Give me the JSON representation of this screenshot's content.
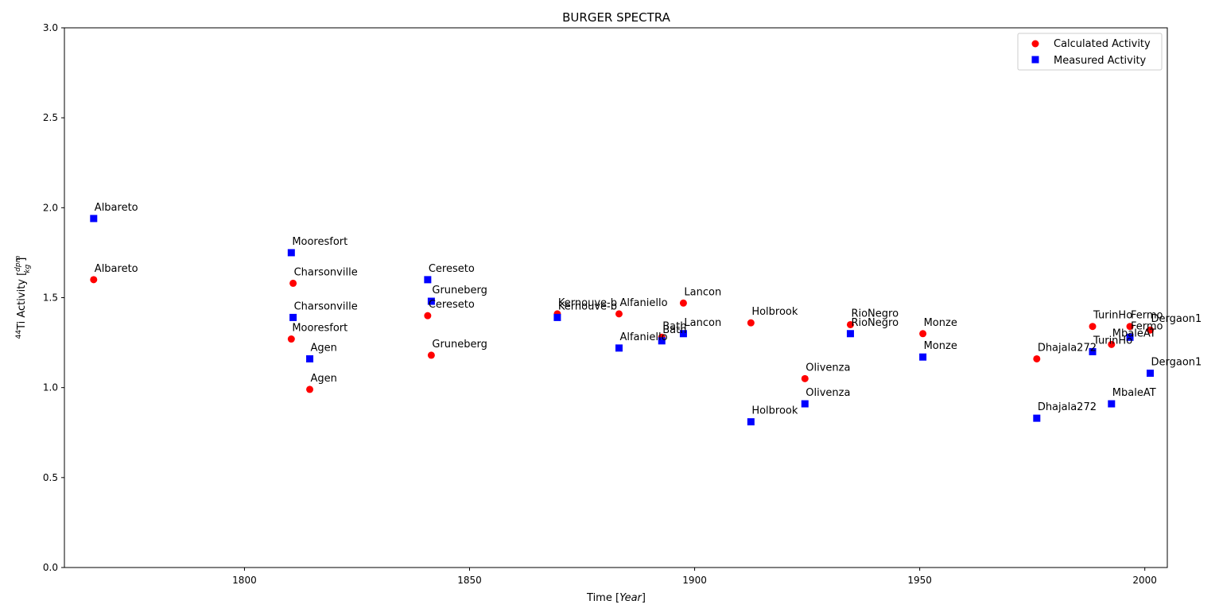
{
  "chart_data": {
    "type": "scatter",
    "title": "BURGER SPECTRA",
    "xlabel_main": "Time [",
    "xlabel_unit": "Year",
    "xlabel_close": "]",
    "ylabel_main": "Ti Activity [",
    "ylabel_sup": "44",
    "ylabel_unit_num": "dpm",
    "ylabel_unit_den": "kg",
    "ylabel_close": "]",
    "xlim": [
      1760,
      2005
    ],
    "ylim": [
      0,
      3.0
    ],
    "xticks": [
      1800,
      1850,
      1900,
      1950,
      2000
    ],
    "yticks": [
      0.0,
      0.5,
      1.0,
      1.5,
      2.0,
      2.5,
      3.0
    ],
    "ytick_labels": [
      "0.0",
      "0.5",
      "1.0",
      "1.5",
      "2.0",
      "2.5",
      "3.0"
    ],
    "grid": false,
    "legend_position": "top-right",
    "series": [
      {
        "name": "Calculated Activity",
        "color": "#ff0000",
        "marker": "circle",
        "points": [
          {
            "label": "Albareto",
            "x": 1766.5,
            "y": 1.6
          },
          {
            "label": "Charsonville",
            "x": 1810.8,
            "y": 1.58
          },
          {
            "label": "Mooresfort",
            "x": 1810.4,
            "y": 1.27
          },
          {
            "label": "Agen",
            "x": 1814.5,
            "y": 0.99
          },
          {
            "label": "Cereseto",
            "x": 1840.7,
            "y": 1.4
          },
          {
            "label": "Gruneberg",
            "x": 1841.5,
            "y": 1.18
          },
          {
            "label": "Kernouve-b",
            "x": 1869.5,
            "y": 1.41
          },
          {
            "label": "Alfaniello",
            "x": 1883.2,
            "y": 1.41
          },
          {
            "label": "Bath",
            "x": 1892.7,
            "y": 1.28
          },
          {
            "label": "Lancon",
            "x": 1897.5,
            "y": 1.47
          },
          {
            "label": "Holbrook",
            "x": 1912.5,
            "y": 1.36
          },
          {
            "label": "Olivenza",
            "x": 1924.5,
            "y": 1.05
          },
          {
            "label": "RioNegro",
            "x": 1934.6,
            "y": 1.35
          },
          {
            "label": "Monze",
            "x": 1950.7,
            "y": 1.3
          },
          {
            "label": "Dhajala272",
            "x": 1976.0,
            "y": 1.16
          },
          {
            "label": "TurinHo",
            "x": 1988.4,
            "y": 1.34
          },
          {
            "label": "MbaleAT",
            "x": 1992.6,
            "y": 1.24
          },
          {
            "label": "Fermo",
            "x": 1996.7,
            "y": 1.34
          },
          {
            "label": "Dergaon1",
            "x": 2001.2,
            "y": 1.32
          }
        ]
      },
      {
        "name": "Measured Activity",
        "color": "#0000ff",
        "marker": "square",
        "points": [
          {
            "label": "Albareto",
            "x": 1766.5,
            "y": 1.94
          },
          {
            "label": "Mooresfort",
            "x": 1810.4,
            "y": 1.75
          },
          {
            "label": "Charsonville",
            "x": 1810.8,
            "y": 1.39
          },
          {
            "label": "Agen",
            "x": 1814.5,
            "y": 1.16
          },
          {
            "label": "Cereseto",
            "x": 1840.7,
            "y": 1.6
          },
          {
            "label": "Gruneberg",
            "x": 1841.5,
            "y": 1.48
          },
          {
            "label": "Kernouve-b",
            "x": 1869.5,
            "y": 1.39
          },
          {
            "label": "Alfaniello",
            "x": 1883.2,
            "y": 1.22
          },
          {
            "label": "Bath",
            "x": 1892.7,
            "y": 1.26
          },
          {
            "label": "Lancon",
            "x": 1897.5,
            "y": 1.3
          },
          {
            "label": "Holbrook",
            "x": 1912.5,
            "y": 0.81
          },
          {
            "label": "Olivenza",
            "x": 1924.5,
            "y": 0.91
          },
          {
            "label": "RioNegro",
            "x": 1934.6,
            "y": 1.3
          },
          {
            "label": "Monze",
            "x": 1950.7,
            "y": 1.17
          },
          {
            "label": "Dhajala272",
            "x": 1976.0,
            "y": 0.83
          },
          {
            "label": "TurinHo",
            "x": 1988.4,
            "y": 1.2
          },
          {
            "label": "MbaleAT",
            "x": 1992.6,
            "y": 0.91
          },
          {
            "label": "Fermo",
            "x": 1996.7,
            "y": 1.28
          },
          {
            "label": "Dergaon1",
            "x": 2001.2,
            "y": 1.08
          }
        ]
      }
    ]
  }
}
